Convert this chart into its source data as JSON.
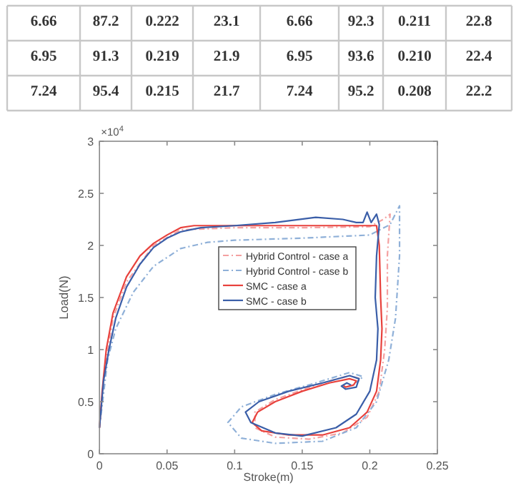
{
  "chart_data": [
    {
      "type": "other",
      "annotations": [
        "6.66",
        "87.2",
        "0.222",
        "23.1",
        "6.66",
        "92.3",
        "0.211",
        "22.8",
        "6.95",
        "91.3",
        "0.219",
        "21.9",
        "6.95",
        "93.6",
        "0.210",
        "22.4",
        "7.24",
        "95.4",
        "0.215",
        "21.7",
        "7.24",
        "95.2",
        "0.208",
        "22.2"
      ]
    },
    {
      "type": "line",
      "xlabel": "Stroke(m)",
      "ylabel": "Load(N)",
      "annotations": [
        "×10$^{4}$"
      ],
      "xlim": [
        0,
        0.25
      ],
      "xticks": [
        0,
        0.05,
        0.1,
        0.15,
        0.2,
        0.25
      ],
      "ylim": [
        0,
        3
      ],
      "yticks": [
        0,
        0.5,
        1,
        1.5,
        2,
        2.5,
        3
      ],
      "legend": "center",
      "grid": false,
      "series": [
        {
          "name": "Hybrid Control - case a",
          "color": "#f4a0a0",
          "line_style": "dashed",
          "x": [
            0,
            0.005,
            0.01,
            0.02,
            0.04,
            0.06,
            0.1,
            0.15,
            0.2,
            0.21,
            0.215,
            0.213,
            0.213,
            0.211,
            0.207,
            0.198,
            0.18,
            0.155,
            0.13,
            0.115,
            0.115,
            0.13,
            0.16,
            0.185,
            0.193,
            0.19
          ],
          "values": [
            0.25,
            0.9,
            1.3,
            1.65,
            2.0,
            2.15,
            2.17,
            2.17,
            2.18,
            2.25,
            2.3,
            1.9,
            1.4,
            1.0,
            0.6,
            0.35,
            0.2,
            0.14,
            0.16,
            0.25,
            0.4,
            0.52,
            0.66,
            0.75,
            0.72,
            0.68
          ]
        },
        {
          "name": "Hybrid Control - case b",
          "color": "#8fb0d8",
          "line_style": "dashed",
          "x": [
            0,
            0.006,
            0.012,
            0.025,
            0.04,
            0.06,
            0.08,
            0.1,
            0.15,
            0.2,
            0.215,
            0.222,
            0.222,
            0.219,
            0.214,
            0.205,
            0.19,
            0.165,
            0.13,
            0.105,
            0.095,
            0.105,
            0.13,
            0.16,
            0.185,
            0.195,
            0.19
          ],
          "values": [
            0.25,
            0.9,
            1.2,
            1.55,
            1.8,
            1.97,
            2.03,
            2.05,
            2.07,
            2.1,
            2.2,
            2.38,
            1.9,
            1.3,
            0.9,
            0.5,
            0.25,
            0.12,
            0.1,
            0.15,
            0.3,
            0.45,
            0.57,
            0.68,
            0.78,
            0.74,
            0.68
          ]
        },
        {
          "name": "SMC - case a",
          "color": "#e8413c",
          "line_style": "solid",
          "x": [
            0,
            0.002,
            0.005,
            0.01,
            0.02,
            0.03,
            0.04,
            0.05,
            0.06,
            0.07,
            0.1,
            0.15,
            0.19,
            0.205,
            0.207,
            0.208,
            0.209,
            0.208,
            0.205,
            0.198,
            0.185,
            0.165,
            0.14,
            0.12,
            0.113,
            0.117,
            0.13,
            0.15,
            0.17,
            0.185,
            0.19,
            0.188,
            0.182,
            0.18
          ],
          "values": [
            0.25,
            0.6,
            1.0,
            1.35,
            1.7,
            1.9,
            2.02,
            2.1,
            2.17,
            2.19,
            2.19,
            2.19,
            2.19,
            2.19,
            2.0,
            1.5,
            1.2,
            0.9,
            0.6,
            0.4,
            0.25,
            0.18,
            0.18,
            0.22,
            0.3,
            0.4,
            0.5,
            0.6,
            0.68,
            0.72,
            0.7,
            0.66,
            0.64,
            0.66
          ]
        },
        {
          "name": "SMC - case b",
          "color": "#3a5ea8",
          "line_style": "solid",
          "x": [
            0,
            0.003,
            0.007,
            0.012,
            0.02,
            0.03,
            0.04,
            0.05,
            0.06,
            0.075,
            0.1,
            0.13,
            0.16,
            0.18,
            0.19,
            0.195,
            0.198,
            0.201,
            0.205,
            0.207,
            0.205,
            0.204,
            0.206,
            0.205,
            0.2,
            0.19,
            0.175,
            0.15,
            0.13,
            0.112,
            0.108,
            0.118,
            0.14,
            0.165,
            0.185,
            0.192,
            0.19,
            0.182,
            0.179,
            0.183,
            0.186
          ],
          "values": [
            0.25,
            0.7,
            1.0,
            1.3,
            1.6,
            1.82,
            1.98,
            2.07,
            2.13,
            2.17,
            2.19,
            2.22,
            2.27,
            2.25,
            2.22,
            2.22,
            2.32,
            2.22,
            2.3,
            2.2,
            1.9,
            1.5,
            1.2,
            0.9,
            0.6,
            0.38,
            0.25,
            0.17,
            0.2,
            0.3,
            0.4,
            0.5,
            0.6,
            0.68,
            0.75,
            0.72,
            0.64,
            0.62,
            0.65,
            0.68,
            0.66
          ]
        }
      ]
    }
  ]
}
